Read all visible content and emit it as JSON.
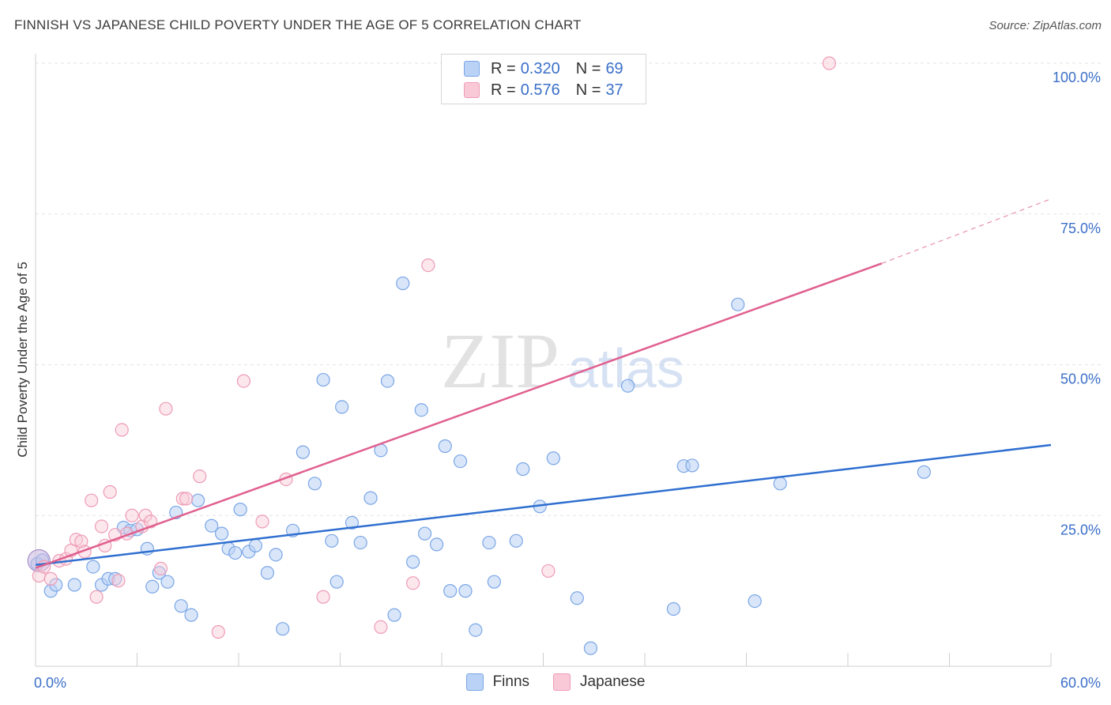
{
  "header": {
    "title": "FINNISH VS JAPANESE CHILD POVERTY UNDER THE AGE OF 5 CORRELATION CHART",
    "source": "Source: ZipAtlas.com"
  },
  "watermark": {
    "zip": "ZIP",
    "atlas": "atlas"
  },
  "legend": {
    "finns": {
      "r_label": "R =",
      "r_value": "0.320",
      "n_label": "N =",
      "n_value": "69"
    },
    "japanese": {
      "r_label": "R =",
      "r_value": "0.576",
      "n_label": "N =",
      "n_value": "37"
    }
  },
  "bottom_legend": {
    "finns": "Finns",
    "japanese": "Japanese"
  },
  "colors": {
    "finns_fill": "#b9d2f5",
    "finns_stroke": "#7aa6e6",
    "finns_line": "#2f6fd0",
    "japanese_fill": "#f9c9d8",
    "japanese_stroke": "#ee9bb6",
    "japanese_line": "#e0608f",
    "axis_text": "#3b6fc9",
    "grid": "#e3e3e3"
  },
  "chart_data": {
    "type": "scatter",
    "title": "FINNISH VS JAPANESE CHILD POVERTY UNDER THE AGE OF 5 CORRELATION CHART",
    "xlabel": "",
    "ylabel": "Child Poverty Under the Age of 5",
    "xlim": [
      0,
      60
    ],
    "ylim": [
      0,
      100
    ],
    "x_tick_labels": [
      "0.0%",
      "60.0%"
    ],
    "y_ticks": [
      25,
      50,
      75,
      100
    ],
    "y_tick_labels": [
      "25.0%",
      "50.0%",
      "75.0%",
      "100.0%"
    ],
    "grid": true,
    "legend_position": "top-center",
    "series": [
      {
        "name": "Finns",
        "trend": {
          "x": [
            0,
            60
          ],
          "y": [
            16.8,
            36.7
          ]
        },
        "points": [
          [
            0.1,
            17.0
          ],
          [
            0.9,
            12.5
          ],
          [
            1.2,
            13.5
          ],
          [
            2.3,
            13.5
          ],
          [
            3.4,
            16.5
          ],
          [
            3.9,
            13.5
          ],
          [
            4.3,
            14.5
          ],
          [
            4.7,
            14.5
          ],
          [
            5.2,
            23.0
          ],
          [
            5.6,
            22.5
          ],
          [
            6.0,
            22.7
          ],
          [
            6.6,
            19.5
          ],
          [
            6.9,
            13.2
          ],
          [
            7.3,
            15.5
          ],
          [
            7.8,
            14.0
          ],
          [
            8.3,
            25.5
          ],
          [
            8.6,
            10.0
          ],
          [
            9.2,
            8.5
          ],
          [
            9.6,
            27.5
          ],
          [
            10.4,
            23.3
          ],
          [
            11.0,
            22.0
          ],
          [
            11.4,
            19.5
          ],
          [
            11.8,
            18.8
          ],
          [
            12.1,
            26.0
          ],
          [
            12.6,
            19.0
          ],
          [
            13.0,
            20.0
          ],
          [
            13.7,
            15.5
          ],
          [
            14.2,
            18.5
          ],
          [
            14.6,
            6.2
          ],
          [
            15.2,
            22.5
          ],
          [
            15.8,
            35.5
          ],
          [
            16.5,
            30.3
          ],
          [
            17.0,
            47.5
          ],
          [
            17.5,
            20.8
          ],
          [
            17.8,
            14.0
          ],
          [
            18.1,
            43.0
          ],
          [
            18.7,
            23.8
          ],
          [
            19.2,
            20.5
          ],
          [
            19.8,
            27.9
          ],
          [
            20.4,
            35.8
          ],
          [
            20.8,
            47.3
          ],
          [
            21.2,
            8.5
          ],
          [
            21.7,
            63.5
          ],
          [
            22.3,
            17.3
          ],
          [
            22.8,
            42.5
          ],
          [
            23.0,
            22.0
          ],
          [
            23.7,
            20.2
          ],
          [
            24.2,
            36.5
          ],
          [
            24.5,
            12.5
          ],
          [
            25.1,
            34.0
          ],
          [
            25.4,
            12.5
          ],
          [
            26.0,
            6.0
          ],
          [
            26.8,
            20.5
          ],
          [
            27.1,
            14.0
          ],
          [
            28.4,
            20.8
          ],
          [
            28.8,
            32.7
          ],
          [
            29.8,
            26.5
          ],
          [
            30.6,
            34.5
          ],
          [
            32.0,
            11.3
          ],
          [
            32.8,
            3.0
          ],
          [
            35.0,
            46.5
          ],
          [
            37.7,
            9.5
          ],
          [
            38.3,
            33.2
          ],
          [
            38.8,
            33.3
          ],
          [
            41.5,
            60.0
          ],
          [
            42.5,
            10.8
          ],
          [
            44.0,
            30.3
          ],
          [
            52.5,
            32.2
          ],
          [
            0.4,
            17.6
          ]
        ]
      },
      {
        "name": "Japanese",
        "trend": {
          "x": [
            0,
            50
          ],
          "y": [
            16.3,
            66.8
          ]
        },
        "trend_dashed": {
          "x": [
            50,
            60
          ],
          "y": [
            66.8,
            77.5
          ]
        },
        "points": [
          [
            0.2,
            15.0
          ],
          [
            0.5,
            16.5
          ],
          [
            0.9,
            14.5
          ],
          [
            1.4,
            17.5
          ],
          [
            1.8,
            17.8
          ],
          [
            2.1,
            19.2
          ],
          [
            2.4,
            21.0
          ],
          [
            2.7,
            20.7
          ],
          [
            2.9,
            19.0
          ],
          [
            3.3,
            27.5
          ],
          [
            3.6,
            11.5
          ],
          [
            3.9,
            23.2
          ],
          [
            4.1,
            20.0
          ],
          [
            4.4,
            28.9
          ],
          [
            4.7,
            21.8
          ],
          [
            4.9,
            14.2
          ],
          [
            5.1,
            39.2
          ],
          [
            5.4,
            22.0
          ],
          [
            5.7,
            25.0
          ],
          [
            6.3,
            23.2
          ],
          [
            6.5,
            25.0
          ],
          [
            6.8,
            24.0
          ],
          [
            7.4,
            16.2
          ],
          [
            7.7,
            42.7
          ],
          [
            8.7,
            27.8
          ],
          [
            8.9,
            27.8
          ],
          [
            9.7,
            31.5
          ],
          [
            10.8,
            5.7
          ],
          [
            12.3,
            47.3
          ],
          [
            13.4,
            24.0
          ],
          [
            14.8,
            31.0
          ],
          [
            17.0,
            11.5
          ],
          [
            20.4,
            6.5
          ],
          [
            22.3,
            13.8
          ],
          [
            23.2,
            66.5
          ],
          [
            30.3,
            15.8
          ],
          [
            46.9,
            100.0
          ]
        ]
      }
    ]
  }
}
